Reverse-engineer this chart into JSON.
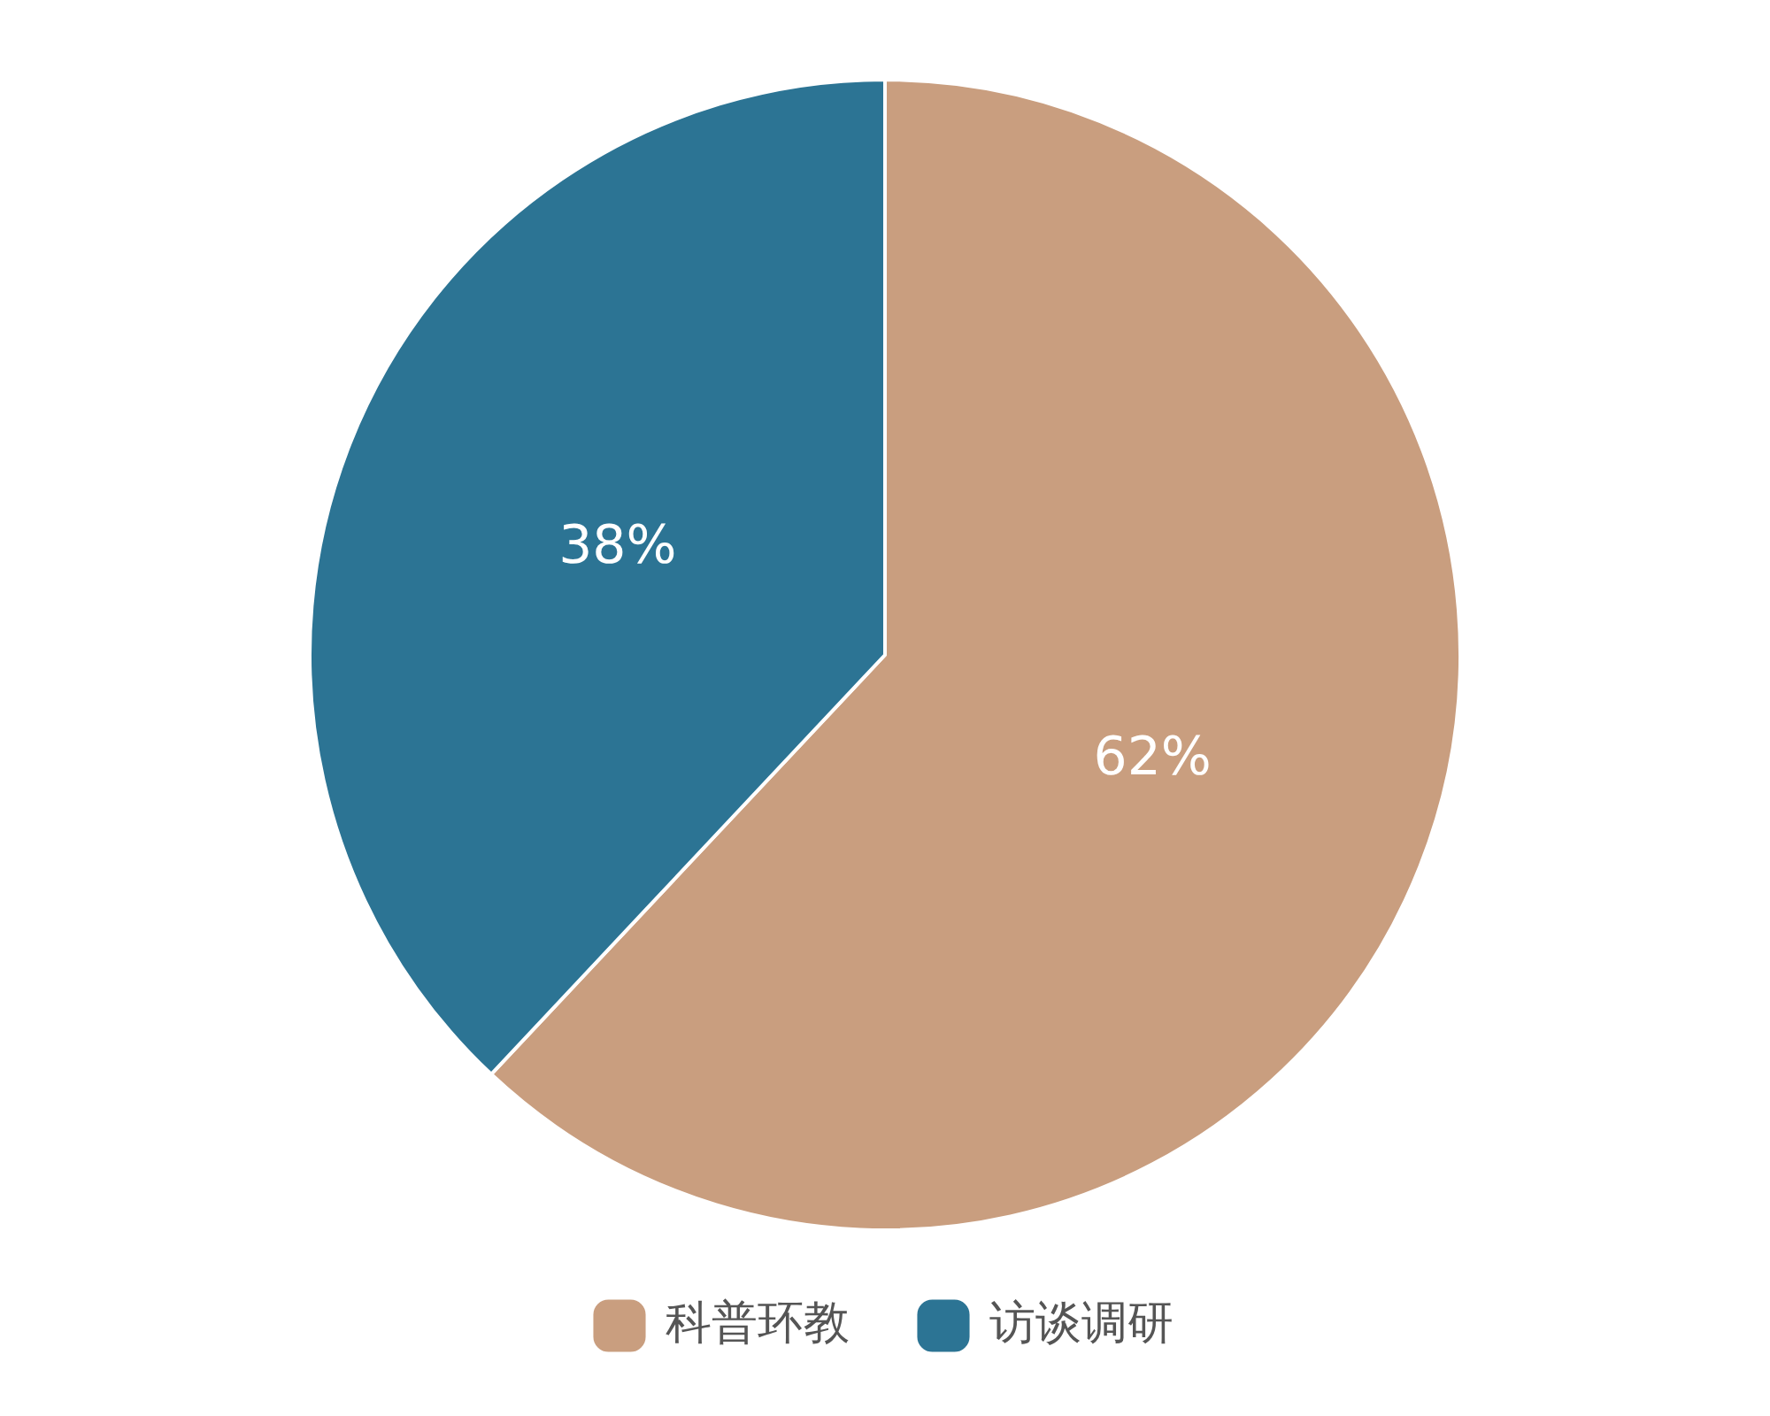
{
  "chart_data": {
    "type": "pie",
    "categories": [
      "科普环教",
      "访谈调研"
    ],
    "values": [
      62,
      38
    ],
    "colors": [
      "#c99e7f",
      "#2c7494"
    ],
    "value_labels": [
      "62%",
      "38%"
    ],
    "legend": "bottom"
  }
}
